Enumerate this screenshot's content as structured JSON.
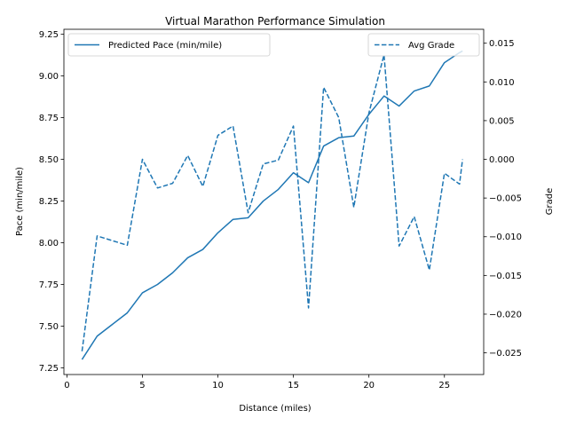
{
  "chart_data": {
    "type": "line",
    "title": "Virtual Marathon Performance Simulation",
    "xlabel": "Distance (miles)",
    "ylabel": "Pace (min/mile)",
    "y2label": "Grade",
    "xlim": [
      -0.2,
      27.6
    ],
    "ylim": [
      7.21,
      9.28
    ],
    "y2lim": [
      -0.0278,
      0.0168
    ],
    "xticks": [
      0,
      5,
      10,
      15,
      20,
      25
    ],
    "yticks": [
      7.25,
      7.5,
      7.75,
      8.0,
      8.25,
      8.5,
      8.75,
      9.0,
      9.25
    ],
    "ytick_labels": [
      "7.25",
      "7.50",
      "7.75",
      "8.00",
      "8.25",
      "8.50",
      "8.75",
      "9.00",
      "9.25"
    ],
    "y2ticks": [
      -0.025,
      -0.02,
      -0.015,
      -0.01,
      -0.005,
      0.0,
      0.005,
      0.01,
      0.015
    ],
    "y2tick_labels": [
      "−0.025",
      "−0.020",
      "−0.015",
      "−0.010",
      "−0.005",
      "0.000",
      "0.005",
      "0.010",
      "0.015"
    ],
    "color": "#1f77b4",
    "grid": false,
    "x": [
      1,
      2,
      3,
      4,
      5,
      6,
      7,
      8,
      9,
      10,
      11,
      12,
      13,
      14,
      15,
      16,
      17,
      18,
      19,
      20,
      21,
      22,
      23,
      24,
      25,
      26,
      26.2
    ],
    "series": [
      {
        "name": "Predicted Pace (min/mile)",
        "axis": "left",
        "style": "solid",
        "legend_position": "top-left",
        "values": [
          7.3,
          7.44,
          7.51,
          7.58,
          7.7,
          7.75,
          7.82,
          7.91,
          7.96,
          8.06,
          8.14,
          8.15,
          8.25,
          8.32,
          8.42,
          8.36,
          8.58,
          8.63,
          8.64,
          8.77,
          8.88,
          8.82,
          8.91,
          8.94,
          9.08,
          9.14,
          9.15
        ]
      },
      {
        "name": "Avg Grade",
        "axis": "right",
        "style": "dashed",
        "legend_position": "top-right",
        "values": [
          -0.0248,
          -0.0099,
          -0.0105,
          -0.0111,
          0.0,
          -0.0037,
          -0.0031,
          0.0005,
          -0.0035,
          0.0031,
          0.0043,
          -0.0069,
          -0.0006,
          -0.0001,
          0.0043,
          -0.0192,
          0.0093,
          0.0054,
          -0.0062,
          0.006,
          0.0135,
          -0.0112,
          -0.0074,
          -0.0143,
          -0.0018,
          -0.0032,
          0.0
        ]
      }
    ]
  }
}
